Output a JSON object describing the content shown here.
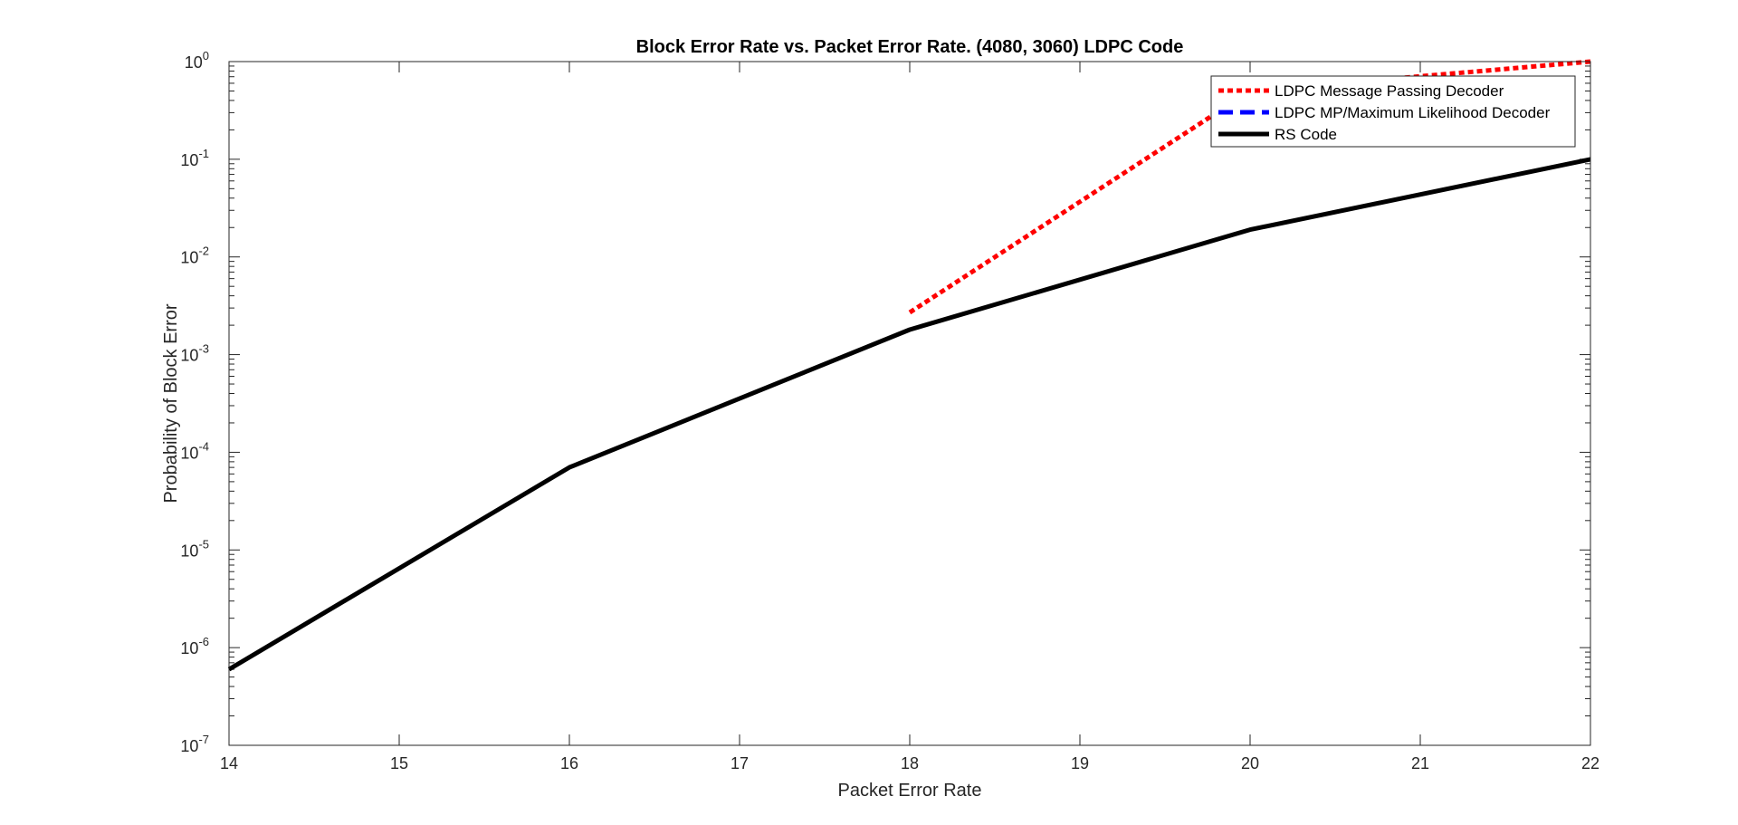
{
  "chart_data": {
    "type": "line",
    "title": "Block Error Rate vs. Packet Error Rate.  (4080, 3060) LDPC Code",
    "xlabel": "Packet Error Rate",
    "ylabel": "Probability of Block Error",
    "xlim": [
      14,
      22
    ],
    "ylim": [
      1e-07,
      1
    ],
    "yscale": "log",
    "xticks": [
      "14",
      "15",
      "16",
      "17",
      "18",
      "19",
      "20",
      "21",
      "22"
    ],
    "ytick_exponents": [
      "0",
      "-1",
      "-2",
      "-3",
      "-4",
      "-5",
      "-6",
      "-7"
    ],
    "ytick_base": "10",
    "grid": false,
    "legend_position": "top-right",
    "series": [
      {
        "name": "LDPC Message Passing Decoder",
        "color": "#ff0000",
        "style": "dotted",
        "x": [
          18,
          20,
          22
        ],
        "y": [
          0.0027,
          0.5,
          1.0
        ]
      },
      {
        "name": "LDPC MP/Maximum Likelihood Decoder",
        "color": "#0000ff",
        "style": "dashed",
        "x": [],
        "y": []
      },
      {
        "name": "RS Code",
        "color": "#000000",
        "style": "solid",
        "x": [
          14,
          16,
          18,
          20,
          22
        ],
        "y": [
          6e-07,
          7e-05,
          0.0018,
          0.019,
          0.1
        ]
      }
    ]
  }
}
